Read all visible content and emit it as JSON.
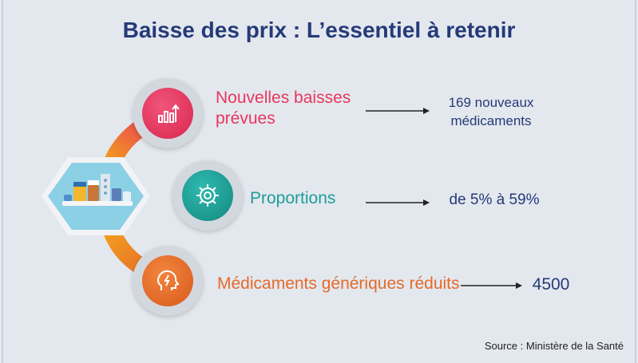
{
  "title": "Baisse des prix : L’essentiel à retenir",
  "rows": [
    {
      "label_line1": "Nouvelles baisses",
      "label_line2": "prévues",
      "value_line1": "169 nouveaux",
      "value_line2": "médicaments",
      "icon": "growth-chart-icon",
      "color": "#e8365d"
    },
    {
      "label": "Proportions",
      "value": "de 5% à 59%",
      "icon": "gear-icon",
      "color": "#1f9c9a"
    },
    {
      "label": "Médicaments génériques réduits",
      "value": "4500",
      "icon": "head-lightning-icon",
      "color": "#e56a2b"
    }
  ],
  "hub_icon": "medicines-icon",
  "source": "Source : Ministère de la Santé",
  "colors": {
    "title": "#253a78",
    "hub": "#8cd0e6",
    "arrow": "#222222"
  }
}
